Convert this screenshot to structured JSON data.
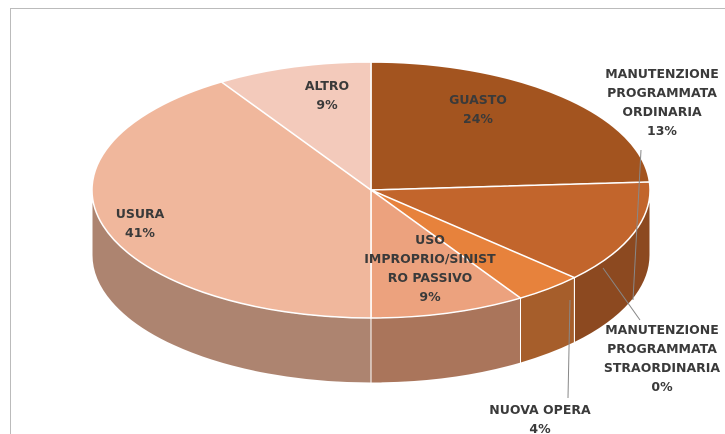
{
  "chart_data": {
    "type": "pie3d",
    "categories": [
      "GUASTO",
      "MANUTENZIONE PROGRAMMATA ORDINARIA",
      "MANUTENZIONE PROGRAMMATA STRAORDINARIA",
      "NUOVA OPERA",
      "USO IMPROPRIO/SINISTRO PASSIVO",
      "USURA",
      "ALTRO"
    ],
    "values": [
      24,
      13,
      0,
      4,
      9,
      41,
      9
    ],
    "value_labels": [
      "24%",
      "13%",
      "0%",
      "4%",
      "9%",
      "41%",
      "9%"
    ],
    "colors": [
      "#a3541f",
      "#c2652c",
      "#d4733a",
      "#e7823c",
      "#eca27e",
      "#f0b79c",
      "#f3cabb"
    ]
  }
}
